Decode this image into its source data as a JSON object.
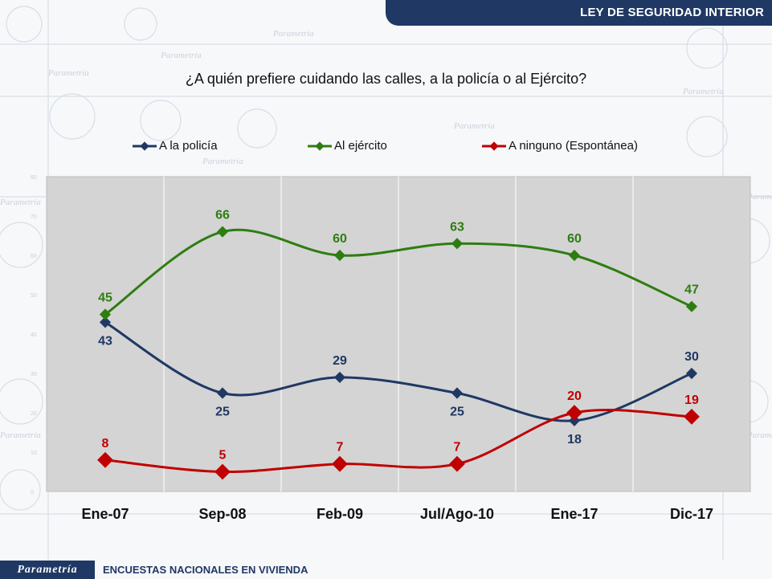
{
  "header": {
    "title": "LEY DE SEGURIDAD INTERIOR"
  },
  "footer": {
    "brand": "Parametría",
    "text": "ENCUESTAS NACIONALES EN VIVIENDA"
  },
  "colors": {
    "navy": "#1f3864",
    "green": "#2e7d12",
    "red": "#c00000",
    "plot_bg": "#d4d4d4"
  },
  "chart_data": {
    "type": "line",
    "title": "¿A quién prefiere cuidando las calles, a la policía o al Ejército?",
    "categories": [
      "Ene-07",
      "Sep-08",
      "Feb-09",
      "Jul/Ago-10",
      "Ene-17",
      "Dic-17"
    ],
    "ylim": [
      0,
      80
    ],
    "yticks": [
      "0",
      "10",
      "20",
      "30",
      "40",
      "50",
      "60",
      "70",
      "80"
    ],
    "grid": "vertical",
    "legend_position": "top",
    "series": [
      {
        "name": "A la policía",
        "color": "#1f3864",
        "values": [
          43,
          25,
          29,
          25,
          18,
          30
        ],
        "label_pos": [
          "below",
          "below",
          "above",
          "below",
          "below",
          "above"
        ]
      },
      {
        "name": "Al ejército",
        "color": "#2e7d12",
        "values": [
          45,
          66,
          60,
          63,
          60,
          47
        ],
        "label_pos": [
          "above",
          "above",
          "above",
          "above",
          "above",
          "above"
        ]
      },
      {
        "name": "A ninguno (Espontánea)",
        "color": "#c00000",
        "values": [
          8,
          5,
          7,
          7,
          20,
          19
        ],
        "label_pos": [
          "above",
          "above",
          "above",
          "above",
          "above",
          "above"
        ]
      }
    ]
  }
}
